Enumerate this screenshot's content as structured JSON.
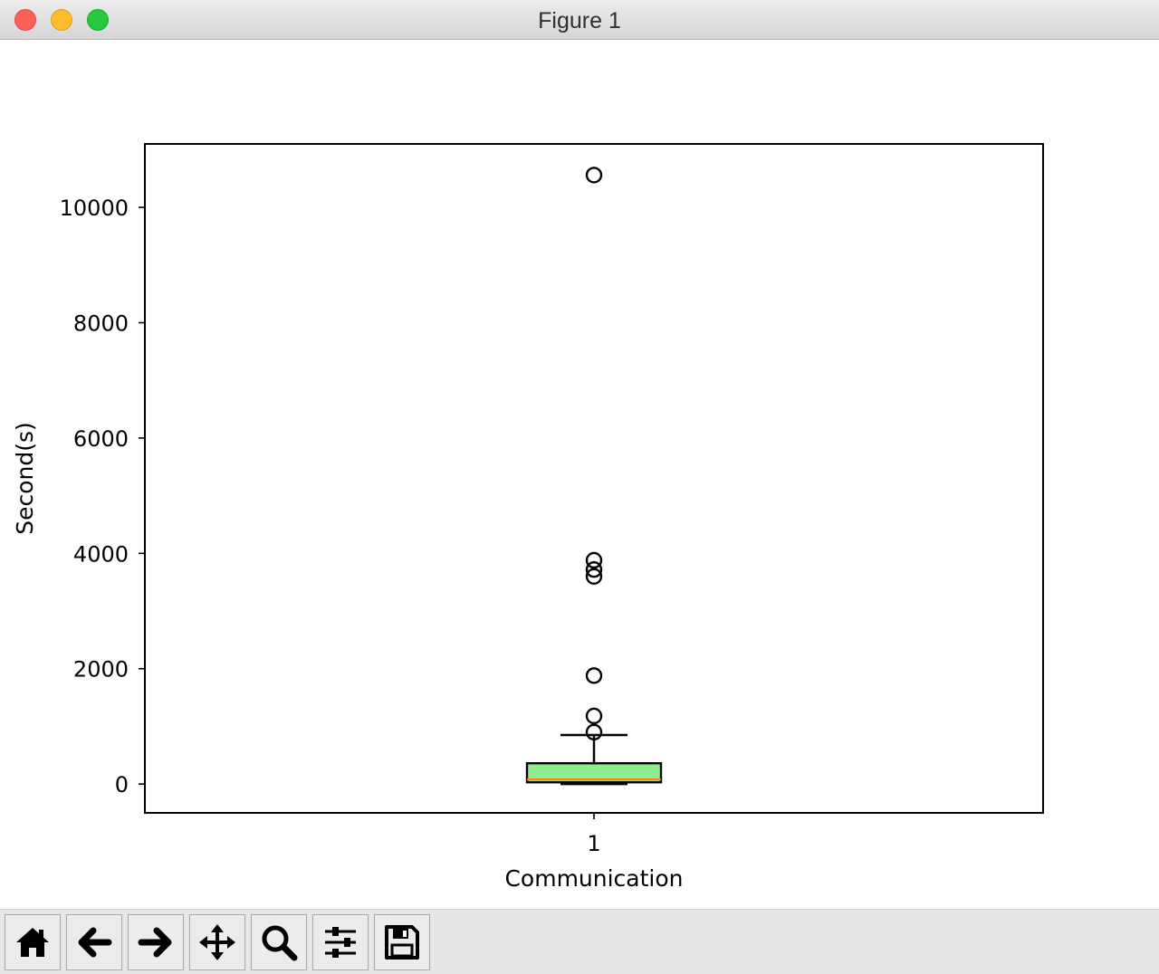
{
  "window": {
    "title": "Figure 1"
  },
  "toolbar": {
    "buttons": [
      {
        "name": "home",
        "icon": "home-icon"
      },
      {
        "name": "back",
        "icon": "arrow-left-icon"
      },
      {
        "name": "forward",
        "icon": "arrow-right-icon"
      },
      {
        "name": "pan",
        "icon": "move-icon"
      },
      {
        "name": "zoom",
        "icon": "magnifier-icon"
      },
      {
        "name": "configure-subplots",
        "icon": "sliders-icon"
      },
      {
        "name": "save",
        "icon": "floppy-disk-icon"
      }
    ]
  },
  "chart_data": {
    "type": "box",
    "title": "",
    "xlabel": "Communication",
    "ylabel": "Second(s)",
    "categories": [
      "1"
    ],
    "ylim": [
      -500,
      11100
    ],
    "yticks": [
      0,
      2000,
      4000,
      6000,
      8000,
      10000
    ],
    "yticklabels": [
      "0",
      "2000",
      "4000",
      "6000",
      "8000",
      "10000"
    ],
    "grid": false,
    "box": {
      "min": 0,
      "q1": 30,
      "median": 80,
      "q3": 360,
      "max": 850,
      "outliers": [
        900,
        1180,
        1880,
        3600,
        3720,
        3880,
        10560
      ],
      "fill_color": "#90ee90",
      "median_color": "#ff7f0e",
      "edge_color": "#000000"
    }
  }
}
